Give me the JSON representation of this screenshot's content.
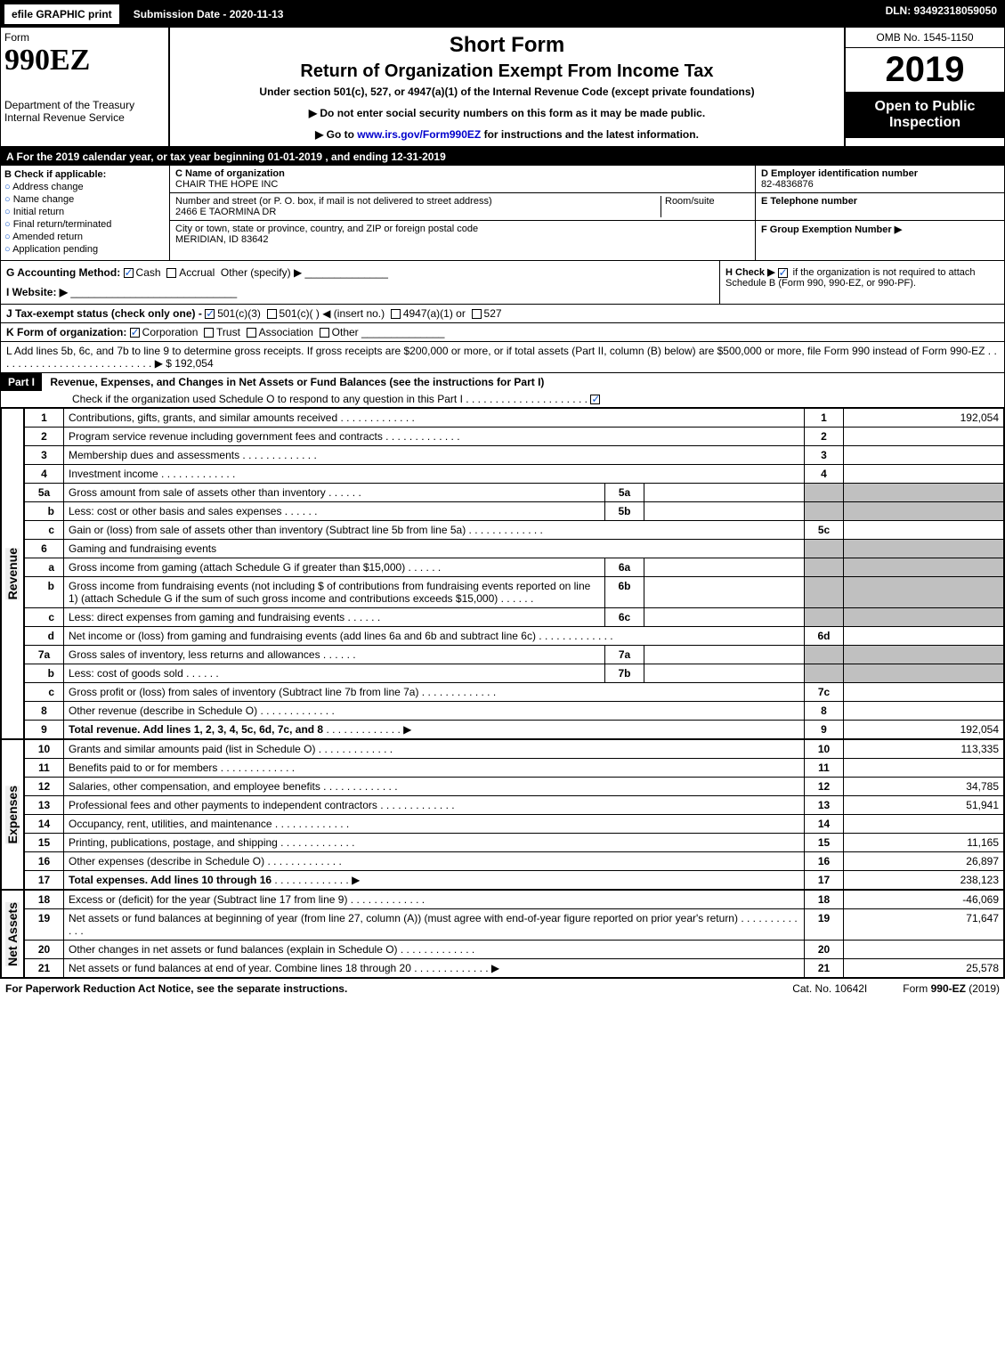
{
  "topbar": {
    "efile": "efile GRAPHIC print",
    "subdate": "Submission Date - 2020-11-13",
    "dln": "DLN: 93492318059050"
  },
  "header": {
    "form_label": "Form",
    "form_num": "990EZ",
    "dept": "Department of the Treasury",
    "irs": "Internal Revenue Service",
    "short": "Short Form",
    "title": "Return of Organization Exempt From Income Tax",
    "subtitle": "Under section 501(c), 527, or 4947(a)(1) of the Internal Revenue Code (except private foundations)",
    "note1": "▶ Do not enter social security numbers on this form as it may be made public.",
    "note2_pre": "▶ Go to ",
    "note2_link": "www.irs.gov/Form990EZ",
    "note2_post": " for instructions and the latest information.",
    "omb": "OMB No. 1545-1150",
    "year": "2019",
    "open": "Open to Public Inspection"
  },
  "rowA": "A  For the 2019 calendar year, or tax year beginning 01-01-2019 , and ending 12-31-2019",
  "B": {
    "label": "B  Check if applicable:",
    "opts": [
      "Address change",
      "Name change",
      "Initial return",
      "Final return/terminated",
      "Amended return",
      "Application pending"
    ]
  },
  "C": {
    "label": "C Name of organization",
    "name": "CHAIR THE HOPE INC",
    "addr_label": "Number and street (or P. O. box, if mail is not delivered to street address)",
    "room_label": "Room/suite",
    "addr": "2466 E TAORMINA DR",
    "city_label": "City or town, state or province, country, and ZIP or foreign postal code",
    "city": "MERIDIAN, ID  83642"
  },
  "D": {
    "label": "D Employer identification number",
    "val": "82-4836876"
  },
  "E": {
    "label": "E Telephone number",
    "val": ""
  },
  "F": {
    "label": "F Group Exemption Number  ▶",
    "val": ""
  },
  "G": {
    "label": "G Accounting Method:",
    "cash": "Cash",
    "accrual": "Accrual",
    "other": "Other (specify) ▶"
  },
  "H": {
    "label": "H  Check ▶",
    "text": " if the organization is not required to attach Schedule B (Form 990, 990-EZ, or 990-PF)."
  },
  "I": {
    "label": "I Website: ▶",
    "val": ""
  },
  "J": {
    "label": "J Tax-exempt status (check only one) -",
    "o1": "501(c)(3)",
    "o2": "501(c)(  ) ◀ (insert no.)",
    "o3": "4947(a)(1) or",
    "o4": "527"
  },
  "K": {
    "label": "K Form of organization:",
    "o1": "Corporation",
    "o2": "Trust",
    "o3": "Association",
    "o4": "Other"
  },
  "L": {
    "text": "L Add lines 5b, 6c, and 7b to line 9 to determine gross receipts. If gross receipts are $200,000 or more, or if total assets (Part II, column (B) below) are $500,000 or more, file Form 990 instead of Form 990-EZ",
    "amt": "▶ $ 192,054"
  },
  "partI": {
    "tag": "Part I",
    "title": "Revenue, Expenses, and Changes in Net Assets or Fund Balances (see the instructions for Part I)",
    "sub": "Check if the organization used Schedule O to respond to any question in this Part I"
  },
  "sections": {
    "revenue": "Revenue",
    "expenses": "Expenses",
    "netassets": "Net Assets"
  },
  "lines": [
    {
      "n": "1",
      "d": "Contributions, gifts, grants, and similar amounts received",
      "ln": "1",
      "v": "192,054"
    },
    {
      "n": "2",
      "d": "Program service revenue including government fees and contracts",
      "ln": "2",
      "v": ""
    },
    {
      "n": "3",
      "d": "Membership dues and assessments",
      "ln": "3",
      "v": ""
    },
    {
      "n": "4",
      "d": "Investment income",
      "ln": "4",
      "v": ""
    },
    {
      "n": "5a",
      "d": "Gross amount from sale of assets other than inventory",
      "sb": "5a",
      "sv": "",
      "grey": true
    },
    {
      "n": "b",
      "d": "Less: cost or other basis and sales expenses",
      "sb": "5b",
      "sv": "",
      "grey": true
    },
    {
      "n": "c",
      "d": "Gain or (loss) from sale of assets other than inventory (Subtract line 5b from line 5a)",
      "ln": "5c",
      "v": ""
    },
    {
      "n": "6",
      "d": "Gaming and fundraising events",
      "grey": true,
      "nolnval": true
    },
    {
      "n": "a",
      "d": "Gross income from gaming (attach Schedule G if greater than $15,000)",
      "sb": "6a",
      "sv": "",
      "grey": true
    },
    {
      "n": "b",
      "d": "Gross income from fundraising events (not including $                   of contributions from fundraising events reported on line 1) (attach Schedule G if the sum of such gross income and contributions exceeds $15,000)",
      "sb": "6b",
      "sv": "",
      "grey": true
    },
    {
      "n": "c",
      "d": "Less: direct expenses from gaming and fundraising events",
      "sb": "6c",
      "sv": "",
      "grey": true
    },
    {
      "n": "d",
      "d": "Net income or (loss) from gaming and fundraising events (add lines 6a and 6b and subtract line 6c)",
      "ln": "6d",
      "v": ""
    },
    {
      "n": "7a",
      "d": "Gross sales of inventory, less returns and allowances",
      "sb": "7a",
      "sv": "",
      "grey": true
    },
    {
      "n": "b",
      "d": "Less: cost of goods sold",
      "sb": "7b",
      "sv": "",
      "grey": true
    },
    {
      "n": "c",
      "d": "Gross profit or (loss) from sales of inventory (Subtract line 7b from line 7a)",
      "ln": "7c",
      "v": ""
    },
    {
      "n": "8",
      "d": "Other revenue (describe in Schedule O)",
      "ln": "8",
      "v": ""
    },
    {
      "n": "9",
      "d": "Total revenue. Add lines 1, 2, 3, 4, 5c, 6d, 7c, and 8",
      "ln": "9",
      "v": "192,054",
      "bold": true,
      "arrow": true
    }
  ],
  "exp_lines": [
    {
      "n": "10",
      "d": "Grants and similar amounts paid (list in Schedule O)",
      "ln": "10",
      "v": "113,335"
    },
    {
      "n": "11",
      "d": "Benefits paid to or for members",
      "ln": "11",
      "v": ""
    },
    {
      "n": "12",
      "d": "Salaries, other compensation, and employee benefits",
      "ln": "12",
      "v": "34,785"
    },
    {
      "n": "13",
      "d": "Professional fees and other payments to independent contractors",
      "ln": "13",
      "v": "51,941"
    },
    {
      "n": "14",
      "d": "Occupancy, rent, utilities, and maintenance",
      "ln": "14",
      "v": ""
    },
    {
      "n": "15",
      "d": "Printing, publications, postage, and shipping",
      "ln": "15",
      "v": "11,165"
    },
    {
      "n": "16",
      "d": "Other expenses (describe in Schedule O)",
      "ln": "16",
      "v": "26,897"
    },
    {
      "n": "17",
      "d": "Total expenses. Add lines 10 through 16",
      "ln": "17",
      "v": "238,123",
      "bold": true,
      "arrow": true
    }
  ],
  "na_lines": [
    {
      "n": "18",
      "d": "Excess or (deficit) for the year (Subtract line 17 from line 9)",
      "ln": "18",
      "v": "-46,069"
    },
    {
      "n": "19",
      "d": "Net assets or fund balances at beginning of year (from line 27, column (A)) (must agree with end-of-year figure reported on prior year's return)",
      "ln": "19",
      "v": "71,647"
    },
    {
      "n": "20",
      "d": "Other changes in net assets or fund balances (explain in Schedule O)",
      "ln": "20",
      "v": ""
    },
    {
      "n": "21",
      "d": "Net assets or fund balances at end of year. Combine lines 18 through 20",
      "ln": "21",
      "v": "25,578",
      "arrow": true
    }
  ],
  "footer": {
    "l": "For Paperwork Reduction Act Notice, see the separate instructions.",
    "c": "Cat. No. 10642I",
    "r": "Form 990-EZ (2019)"
  }
}
